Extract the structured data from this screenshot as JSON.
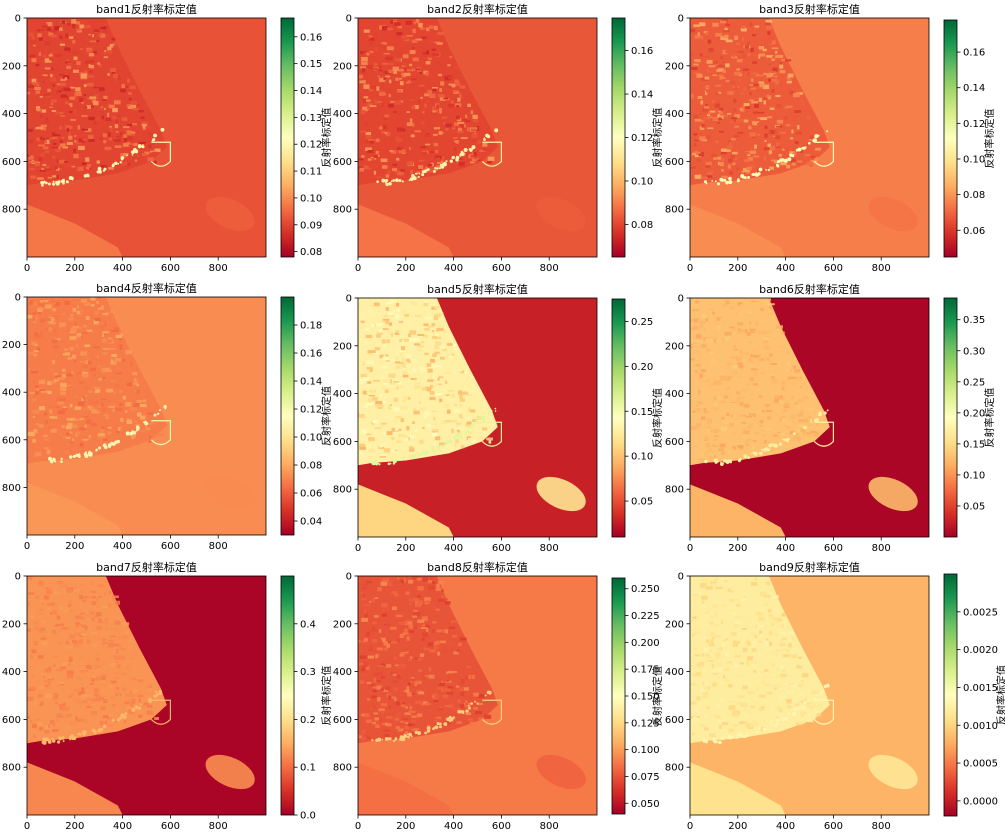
{
  "colors": {
    "colormap": [
      "#a50026",
      "#d73027",
      "#f46d43",
      "#fdae61",
      "#fee08b",
      "#ffffbf",
      "#d9ef8b",
      "#a6d96a",
      "#66bd63",
      "#1a9850",
      "#006837"
    ]
  },
  "chart_data": [
    {
      "type": "heatmap",
      "title": "band1反射率标定值",
      "colorbar_label": "反射率标定值",
      "xlim": [
        0,
        1000
      ],
      "ylim": [
        1000,
        0
      ],
      "x_ticks": [
        0,
        200,
        400,
        600,
        800
      ],
      "y_ticks": [
        0,
        200,
        400,
        600,
        800
      ],
      "colorbar": {
        "vmin": 0.078,
        "vmax": 0.167,
        "ticks": [
          0.08,
          0.09,
          0.1,
          0.11,
          0.12,
          0.13,
          0.14,
          0.15,
          0.16
        ],
        "tick_labels": [
          "0.08",
          "0.09",
          "0.10",
          "0.11",
          "0.12",
          "0.13",
          "0.14",
          "0.15",
          "0.16"
        ]
      },
      "levels": {
        "sea": 0.092,
        "land": 0.09,
        "urban": 0.097,
        "bright": 0.12
      }
    },
    {
      "type": "heatmap",
      "title": "band2反射率标定值",
      "colorbar_label": "反射率标定值",
      "xlim": [
        0,
        1000
      ],
      "ylim": [
        1000,
        0
      ],
      "x_ticks": [
        0,
        200,
        400,
        600,
        800
      ],
      "y_ticks": [
        0,
        200,
        400,
        600,
        800
      ],
      "colorbar": {
        "vmin": 0.065,
        "vmax": 0.175,
        "ticks": [
          0.08,
          0.1,
          0.12,
          0.14,
          0.16
        ],
        "tick_labels": [
          "0.08",
          "0.10",
          "0.12",
          "0.14",
          "0.16"
        ]
      },
      "levels": {
        "sea": 0.083,
        "land": 0.08,
        "urban": 0.088,
        "bright": 0.115
      }
    },
    {
      "type": "heatmap",
      "title": "band3反射率标定值",
      "colorbar_label": "反射率标定值",
      "xlim": [
        0,
        1000
      ],
      "ylim": [
        1000,
        0
      ],
      "x_ticks": [
        0,
        200,
        400,
        600,
        800
      ],
      "y_ticks": [
        0,
        200,
        400,
        600,
        800
      ],
      "colorbar": {
        "vmin": 0.045,
        "vmax": 0.178,
        "ticks": [
          0.06,
          0.08,
          0.1,
          0.12,
          0.14,
          0.16
        ],
        "tick_labels": [
          "0.06",
          "0.08",
          "0.10",
          "0.12",
          "0.14",
          "0.16"
        ]
      },
      "levels": {
        "sea": 0.075,
        "land": 0.068,
        "urban": 0.078,
        "bright": 0.11
      }
    },
    {
      "type": "heatmap",
      "title": "band4反射率标定值",
      "colorbar_label": "反射率标定值",
      "xlim": [
        0,
        1000
      ],
      "ylim": [
        1000,
        0
      ],
      "x_ticks": [
        0,
        200,
        400,
        600,
        800
      ],
      "y_ticks": [
        0,
        200,
        400,
        600,
        800
      ],
      "colorbar": {
        "vmin": 0.03,
        "vmax": 0.2,
        "ticks": [
          0.04,
          0.06,
          0.08,
          0.1,
          0.12,
          0.14,
          0.16,
          0.18
        ],
        "tick_labels": [
          "0.04",
          "0.06",
          "0.08",
          "0.10",
          "0.12",
          "0.14",
          "0.16",
          "0.18"
        ]
      },
      "levels": {
        "sea": 0.072,
        "land": 0.068,
        "urban": 0.075,
        "bright": 0.11
      }
    },
    {
      "type": "heatmap",
      "title": "band5反射率标定值",
      "colorbar_label": "反射率标定值",
      "xlim": [
        0,
        1000
      ],
      "ylim": [
        1000,
        0
      ],
      "x_ticks": [
        0,
        200,
        400,
        600,
        800
      ],
      "y_ticks": [
        0,
        200,
        400,
        600,
        800
      ],
      "colorbar": {
        "vmin": 0.01,
        "vmax": 0.275,
        "ticks": [
          0.05,
          0.1,
          0.15,
          0.2,
          0.25
        ],
        "tick_labels": [
          "0.05",
          "0.10",
          "0.15",
          "0.20",
          "0.25"
        ]
      },
      "levels": {
        "sea": 0.028,
        "land": 0.13,
        "urban": 0.11,
        "bright": 0.16
      }
    },
    {
      "type": "heatmap",
      "title": "band6反射率标定值",
      "colorbar_label": "反射率标定值",
      "xlim": [
        0,
        1000
      ],
      "ylim": [
        1000,
        0
      ],
      "x_ticks": [
        0,
        200,
        400,
        600,
        800
      ],
      "y_ticks": [
        0,
        200,
        400,
        600,
        800
      ],
      "colorbar": {
        "vmin": 0.0,
        "vmax": 0.385,
        "ticks": [
          0.05,
          0.1,
          0.15,
          0.2,
          0.25,
          0.3,
          0.35
        ],
        "tick_labels": [
          "0.05",
          "0.10",
          "0.15",
          "0.20",
          "0.25",
          "0.30",
          "0.35"
        ]
      },
      "levels": {
        "sea": 0.005,
        "land": 0.13,
        "urban": 0.12,
        "bright": 0.17
      }
    },
    {
      "type": "heatmap",
      "title": "band7反射率标定值",
      "colorbar_label": "反射率标定值",
      "xlim": [
        0,
        1000
      ],
      "ylim": [
        1000,
        0
      ],
      "x_ticks": [
        0,
        200,
        400,
        600,
        800
      ],
      "y_ticks": [
        0,
        200,
        400,
        600,
        800
      ],
      "colorbar": {
        "vmin": 0.0,
        "vmax": 0.5,
        "ticks": [
          0.0,
          0.1,
          0.2,
          0.3,
          0.4
        ],
        "tick_labels": [
          "0.0",
          "0.1",
          "0.2",
          "0.3",
          "0.4"
        ]
      },
      "levels": {
        "sea": 0.005,
        "land": 0.13,
        "urban": 0.12,
        "bright": 0.16
      }
    },
    {
      "type": "heatmap",
      "title": "band8反射率标定值",
      "colorbar_label": "反射率标定值",
      "xlim": [
        0,
        1000
      ],
      "ylim": [
        1000,
        0
      ],
      "x_ticks": [
        0,
        200,
        400,
        600,
        800
      ],
      "y_ticks": [
        0,
        200,
        400,
        600,
        800
      ],
      "colorbar": {
        "vmin": 0.04,
        "vmax": 0.26,
        "ticks": [
          0.05,
          0.075,
          0.1,
          0.125,
          0.15,
          0.175,
          0.2,
          0.225,
          0.25
        ],
        "tick_labels": [
          "0.050",
          "0.075",
          "0.100",
          "0.125",
          "0.150",
          "0.175",
          "0.200",
          "0.225",
          "0.250"
        ]
      },
      "levels": {
        "sea": 0.088,
        "land": 0.075,
        "urban": 0.085,
        "bright": 0.12
      }
    },
    {
      "type": "heatmap",
      "title": "band9反射率标定值",
      "colorbar_label": "反射率标定值",
      "xlim": [
        0,
        1000
      ],
      "ylim": [
        1000,
        0
      ],
      "x_ticks": [
        0,
        200,
        400,
        600,
        800
      ],
      "y_ticks": [
        0,
        200,
        400,
        600,
        800
      ],
      "colorbar": {
        "vmin": -0.0002,
        "vmax": 0.003,
        "ticks": [
          0.0,
          0.0005,
          0.001,
          0.0015,
          0.002,
          0.0025
        ],
        "tick_labels": [
          "0.0000",
          "0.0005",
          "0.0010",
          "0.0015",
          "0.0020",
          "0.0025"
        ]
      },
      "levels": {
        "sea": 0.0008,
        "land": 0.0012,
        "urban": 0.0011,
        "bright": 0.0013
      }
    }
  ]
}
